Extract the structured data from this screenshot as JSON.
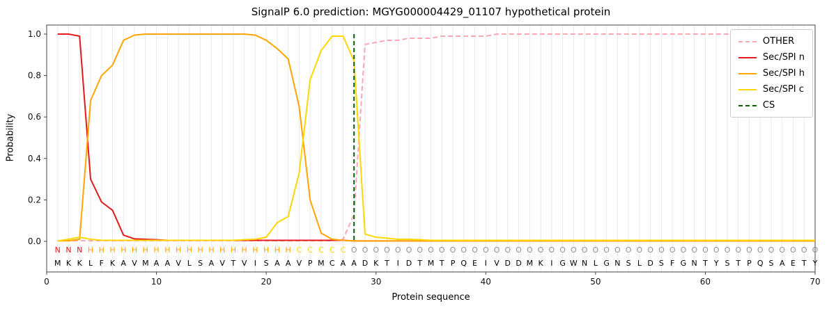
{
  "title": "SignalP 6.0 prediction: MGYG000004429_01107 hypothetical protein",
  "axes": {
    "x_label": "Protein sequence",
    "y_label": "Probability",
    "x_ticks": [
      0,
      10,
      20,
      30,
      40,
      50,
      60,
      70
    ],
    "y_ticks": [
      "0.0",
      "0.2",
      "0.4",
      "0.6",
      "0.8",
      "1.0"
    ]
  },
  "style": {
    "grid": "#e9e9e9",
    "spine": "#444444",
    "sequence_text": "#000000"
  },
  "legend": [
    {
      "label": "OTHER",
      "color": "#f8a8b4",
      "dashed": true
    },
    {
      "label": "Sec/SPI n",
      "color": "#e41a1c",
      "dashed": false
    },
    {
      "label": "Sec/SPI h",
      "color": "#ffa500",
      "dashed": false
    },
    {
      "label": "Sec/SPI c",
      "color": "#ffd700",
      "dashed": false
    },
    {
      "label": "CS",
      "color": "#006400",
      "dashed": true
    }
  ],
  "chart_data": {
    "type": "line",
    "title": "SignalP 6.0 prediction: MGYG000004429_01107 hypothetical protein",
    "xlabel": "Protein sequence",
    "ylabel": "Probability",
    "xlim": [
      0,
      70
    ],
    "ylim": [
      0,
      1.0
    ],
    "grid": "vertical-per-residue",
    "legend_position": "upper-right",
    "positions": [
      1,
      2,
      3,
      4,
      5,
      6,
      7,
      8,
      9,
      10,
      11,
      12,
      13,
      14,
      15,
      16,
      17,
      18,
      19,
      20,
      21,
      22,
      23,
      24,
      25,
      26,
      27,
      28,
      29,
      30,
      31,
      32,
      33,
      34,
      35,
      36,
      37,
      38,
      39,
      40,
      41,
      42,
      43,
      44,
      45,
      46,
      47,
      48,
      49,
      50,
      51,
      52,
      53,
      54,
      55,
      56,
      57,
      58,
      59,
      60,
      61,
      62,
      63,
      64,
      65,
      66,
      67,
      68,
      69,
      70
    ],
    "sequence": "MKKLFKAVMAAVLSAVTVISAAVPMCAADKTIDTMTPQEIVDDMKIGWNLGNSLDSFGNTYSTPQSAETY",
    "region_labels": "NNNHHHHHHHHHHHHHHHHHHHCCCCCOOOOOOOOOOOOOOOOOOOOOOOOOOOOOOOOOOOOOOOOOOO",
    "label_colors": {
      "N": "#e41a1c",
      "H": "#ffa500",
      "C": "#ffd700",
      "O": "#909090"
    },
    "cs": {
      "position": 28,
      "color": "#006400",
      "label": "CS"
    },
    "series": [
      {
        "name": "OTHER",
        "color": "#f8a8b4",
        "dashed": true,
        "values": [
          0.003,
          0.003,
          0.003,
          0.003,
          0.003,
          0.003,
          0.003,
          0.003,
          0.003,
          0.003,
          0.003,
          0.003,
          0.003,
          0.003,
          0.003,
          0.003,
          0.003,
          0.003,
          0.003,
          0.003,
          0.003,
          0.003,
          0.003,
          0.003,
          0.003,
          0.003,
          0.01,
          0.13,
          0.95,
          0.96,
          0.97,
          0.97,
          0.98,
          0.98,
          0.98,
          0.99,
          0.99,
          0.99,
          0.99,
          0.99,
          1.0,
          1.0,
          1.0,
          1.0,
          1.0,
          1.0,
          1.0,
          1.0,
          1.0,
          1.0,
          1.0,
          1.0,
          1.0,
          1.0,
          1.0,
          1.0,
          1.0,
          1.0,
          1.0,
          1.0,
          1.0,
          1.0,
          1.0,
          1.0,
          1.0,
          1.0,
          1.0,
          1.0,
          1.0,
          1.0
        ]
      },
      {
        "name": "Sec/SPI n",
        "color": "#e41a1c",
        "dashed": false,
        "values": [
          1.0,
          1.0,
          0.99,
          0.3,
          0.19,
          0.15,
          0.03,
          0.012,
          0.01,
          0.008,
          0.005,
          0.005,
          0.005,
          0.005,
          0.005,
          0.005,
          0.005,
          0.005,
          0.005,
          0.005,
          0.005,
          0.005,
          0.005,
          0.005,
          0.005,
          0.005,
          0.005,
          0.002,
          0.002,
          0.002,
          0.002,
          0.002,
          0.002,
          0.002,
          0.002,
          0.002,
          0.002,
          0.002,
          0.002,
          0.002,
          0.002,
          0.002,
          0.002,
          0.002,
          0.002,
          0.002,
          0.002,
          0.002,
          0.002,
          0.002,
          0.002,
          0.002,
          0.002,
          0.002,
          0.002,
          0.002,
          0.002,
          0.002,
          0.002,
          0.002,
          0.002,
          0.002,
          0.002,
          0.002,
          0.002,
          0.002,
          0.002,
          0.002,
          0.002,
          0.002
        ]
      },
      {
        "name": "Sec/SPI h",
        "color": "#ffa500",
        "dashed": false,
        "values": [
          0.002,
          0.003,
          0.01,
          0.68,
          0.8,
          0.85,
          0.97,
          0.995,
          1.0,
          1.0,
          1.0,
          1.0,
          1.0,
          1.0,
          1.0,
          1.0,
          1.0,
          1.0,
          0.995,
          0.97,
          0.93,
          0.88,
          0.65,
          0.2,
          0.04,
          0.01,
          0.005,
          0.002,
          0.002,
          0.002,
          0.002,
          0.002,
          0.002,
          0.002,
          0.002,
          0.002,
          0.002,
          0.002,
          0.002,
          0.002,
          0.002,
          0.002,
          0.002,
          0.002,
          0.002,
          0.002,
          0.002,
          0.002,
          0.002,
          0.002,
          0.002,
          0.002,
          0.002,
          0.002,
          0.002,
          0.002,
          0.002,
          0.002,
          0.002,
          0.002,
          0.002,
          0.002,
          0.002,
          0.002,
          0.002,
          0.002,
          0.002,
          0.002,
          0.002,
          0.002
        ]
      },
      {
        "name": "Sec/SPI c",
        "color": "#ffd700",
        "dashed": false,
        "values": [
          0.002,
          0.01,
          0.02,
          0.01,
          0.005,
          0.005,
          0.005,
          0.005,
          0.005,
          0.005,
          0.005,
          0.005,
          0.005,
          0.005,
          0.005,
          0.005,
          0.005,
          0.008,
          0.01,
          0.02,
          0.09,
          0.12,
          0.33,
          0.78,
          0.92,
          0.99,
          0.99,
          0.87,
          0.035,
          0.02,
          0.015,
          0.01,
          0.01,
          0.008,
          0.005,
          0.005,
          0.005,
          0.005,
          0.005,
          0.005,
          0.005,
          0.005,
          0.005,
          0.005,
          0.005,
          0.005,
          0.005,
          0.005,
          0.005,
          0.005,
          0.005,
          0.005,
          0.005,
          0.005,
          0.005,
          0.005,
          0.005,
          0.005,
          0.005,
          0.005,
          0.005,
          0.005,
          0.005,
          0.005,
          0.005,
          0.005,
          0.005,
          0.005,
          0.005,
          0.005
        ]
      }
    ]
  }
}
